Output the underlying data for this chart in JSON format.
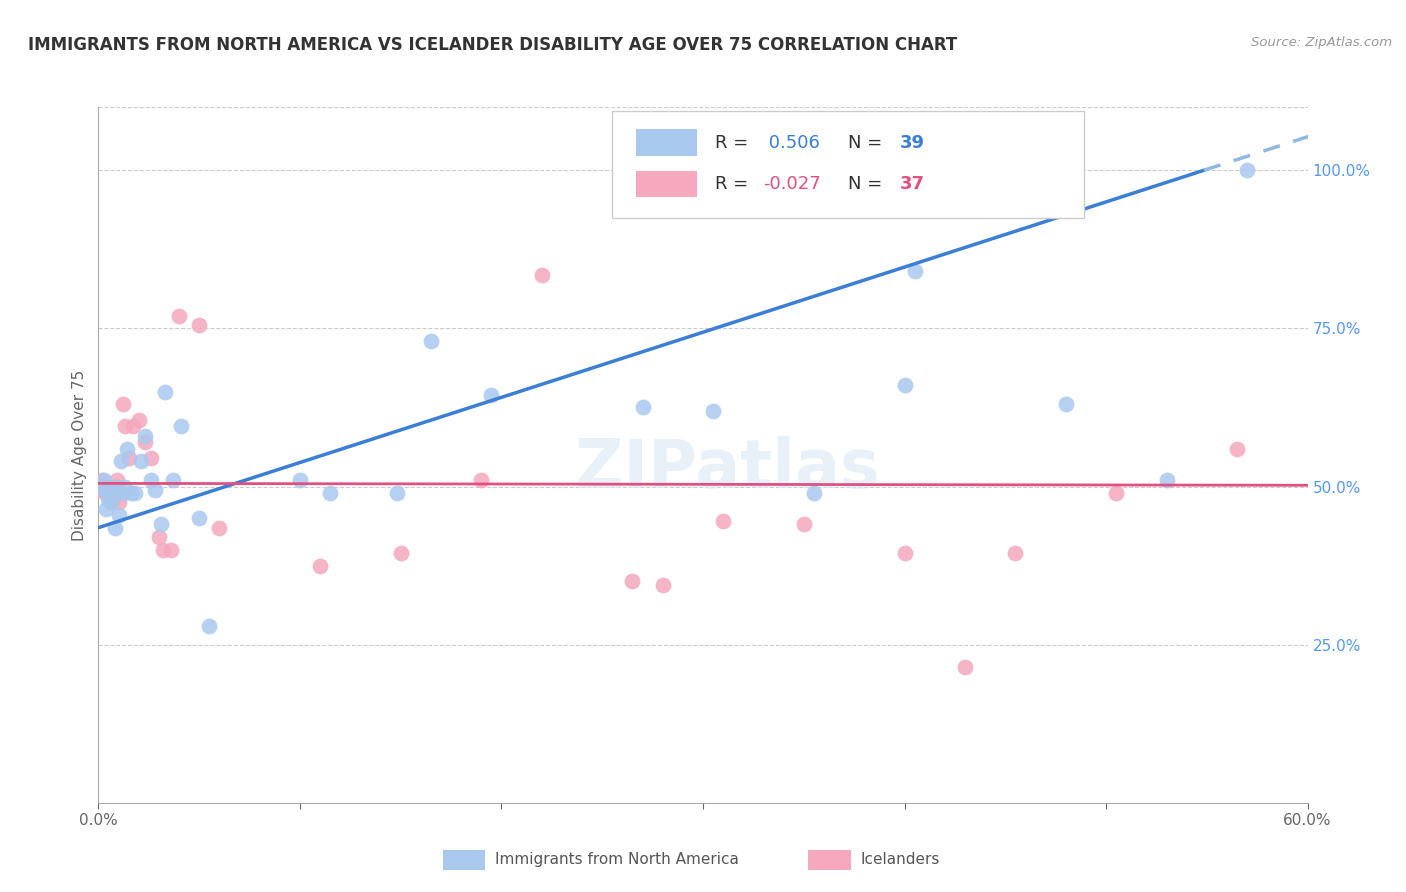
{
  "title": "IMMIGRANTS FROM NORTH AMERICA VS ICELANDER DISABILITY AGE OVER 75 CORRELATION CHART",
  "source": "Source: ZipAtlas.com",
  "ylabel": "Disability Age Over 75",
  "xlim": [
    0.0,
    0.6
  ],
  "ylim": [
    0.0,
    1.1
  ],
  "R_blue": 0.506,
  "N_blue": 39,
  "R_pink": -0.027,
  "N_pink": 37,
  "color_blue": "#A8C8EE",
  "color_pink": "#F5A8BE",
  "line_blue": "#3A7FD5",
  "line_pink": "#E05080",
  "line_blue_dashed": "#90B8E0",
  "watermark": "ZIPatlas",
  "blue_x": [
    0.001,
    0.002,
    0.003,
    0.004,
    0.005,
    0.006,
    0.007,
    0.008,
    0.009,
    0.01,
    0.011,
    0.012,
    0.013,
    0.014,
    0.016,
    0.018,
    0.021,
    0.023,
    0.026,
    0.028,
    0.031,
    0.033,
    0.037,
    0.041,
    0.05,
    0.055,
    0.1,
    0.115,
    0.148,
    0.165,
    0.195,
    0.27,
    0.305,
    0.355,
    0.405,
    0.48,
    0.53,
    0.57,
    0.4
  ],
  "blue_y": [
    0.5,
    0.5,
    0.51,
    0.465,
    0.48,
    0.475,
    0.49,
    0.435,
    0.5,
    0.455,
    0.54,
    0.49,
    0.5,
    0.56,
    0.49,
    0.49,
    0.54,
    0.58,
    0.51,
    0.495,
    0.44,
    0.65,
    0.51,
    0.595,
    0.45,
    0.28,
    0.51,
    0.49,
    0.49,
    0.73,
    0.645,
    0.625,
    0.62,
    0.49,
    0.84,
    0.63,
    0.51,
    1.0,
    0.66
  ],
  "pink_x": [
    0.001,
    0.002,
    0.003,
    0.004,
    0.005,
    0.006,
    0.007,
    0.008,
    0.009,
    0.01,
    0.011,
    0.012,
    0.013,
    0.015,
    0.017,
    0.02,
    0.023,
    0.026,
    0.03,
    0.032,
    0.036,
    0.04,
    0.05,
    0.06,
    0.11,
    0.15,
    0.19,
    0.22,
    0.265,
    0.31,
    0.35,
    0.4,
    0.455,
    0.505,
    0.565,
    0.28,
    0.43
  ],
  "pink_y": [
    0.495,
    0.51,
    0.5,
    0.49,
    0.5,
    0.49,
    0.48,
    0.5,
    0.51,
    0.475,
    0.49,
    0.63,
    0.595,
    0.545,
    0.595,
    0.605,
    0.57,
    0.545,
    0.42,
    0.4,
    0.4,
    0.77,
    0.755,
    0.435,
    0.375,
    0.395,
    0.51,
    0.835,
    0.35,
    0.445,
    0.44,
    0.395,
    0.395,
    0.49,
    0.56,
    0.345,
    0.215
  ],
  "blue_line_x0": 0.0,
  "blue_line_y0": 0.435,
  "blue_line_slope": 1.03,
  "pink_line_x0": 0.0,
  "pink_line_y0": 0.505,
  "pink_line_slope": -0.005
}
